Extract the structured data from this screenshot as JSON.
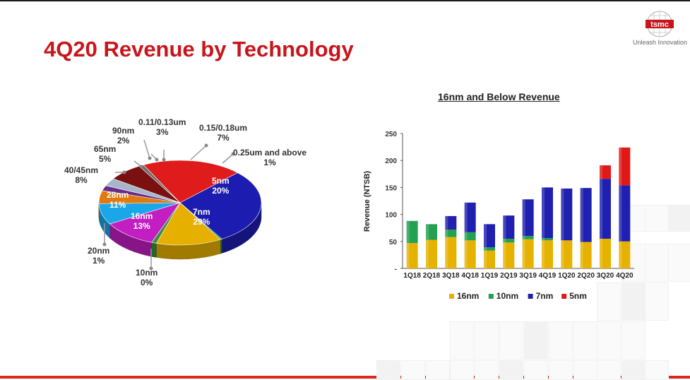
{
  "slide": {
    "title": "4Q20 Revenue by Technology",
    "logo_text": "tsmc",
    "tagline": "Unleash Innovation"
  },
  "colors": {
    "title_red": "#c8151b",
    "s16nm": "#e6b200",
    "s10nm": "#23a050",
    "s7nm": "#2020b0",
    "s5nm": "#e01818"
  },
  "chart_data": [
    {
      "type": "pie",
      "title": "",
      "slices": [
        {
          "label": "5nm",
          "value": 20,
          "pct": "20%",
          "color": "#e01b1b"
        },
        {
          "label": "7nm",
          "value": 29,
          "pct": "29%",
          "color": "#1c1cb0"
        },
        {
          "label": "10nm",
          "value": 0,
          "pct": "0%",
          "color": "#1c8a2e"
        },
        {
          "label": "16nm",
          "value": 13,
          "pct": "13%",
          "color": "#e5b000"
        },
        {
          "label": "20nm",
          "value": 1,
          "pct": "1%",
          "color": "#3b8f3b"
        },
        {
          "label": "28nm",
          "value": 11,
          "pct": "11%",
          "color": "#c21ec2"
        },
        {
          "label": "40/45nm",
          "value": 8,
          "pct": "8%",
          "color": "#1aa6e8"
        },
        {
          "label": "65nm",
          "value": 5,
          "pct": "5%",
          "color": "#e07a10"
        },
        {
          "label": "90nm",
          "value": 2,
          "pct": "2%",
          "color": "#6a2a8a"
        },
        {
          "label": "0.11/0.13um",
          "value": 3,
          "pct": "3%",
          "color": "#a8b4c8"
        },
        {
          "label": "0.15/0.18um",
          "value": 7,
          "pct": "7%",
          "color": "#7a1010"
        },
        {
          "label": "0.25um and above",
          "value": 1,
          "pct": "1%",
          "color": "#707070"
        }
      ]
    },
    {
      "type": "bar",
      "stacked": true,
      "title": "16nm and Below Revenue",
      "xlabel": "",
      "ylabel": "Revenue (NTSB)",
      "ylim": [
        0,
        250
      ],
      "yticks": [
        0,
        50,
        100,
        150,
        200,
        250
      ],
      "ytick_labels": [
        "-",
        "50",
        "100",
        "150",
        "200",
        "250"
      ],
      "grid": false,
      "legend_position": "bottom",
      "categories": [
        "1Q18",
        "2Q18",
        "3Q18",
        "4Q18",
        "1Q19",
        "2Q19",
        "3Q19",
        "4Q19",
        "1Q20",
        "2Q20",
        "3Q20",
        "4Q20"
      ],
      "series": [
        {
          "name": "16nm",
          "color": "#e6b200",
          "values": [
            47,
            53,
            58,
            52,
            33,
            48,
            54,
            52,
            52,
            49,
            55,
            50
          ]
        },
        {
          "name": "10nm",
          "color": "#23a050",
          "values": [
            41,
            29,
            14,
            15,
            6,
            7,
            6,
            4,
            0,
            0,
            0,
            0
          ]
        },
        {
          "name": "7nm",
          "color": "#2020b0",
          "values": [
            0,
            0,
            25,
            55,
            43,
            43,
            68,
            94,
            96,
            100,
            111,
            104
          ]
        },
        {
          "name": "5nm",
          "color": "#e01818",
          "values": [
            0,
            0,
            0,
            0,
            0,
            0,
            0,
            0,
            0,
            0,
            25,
            70
          ]
        }
      ]
    }
  ]
}
